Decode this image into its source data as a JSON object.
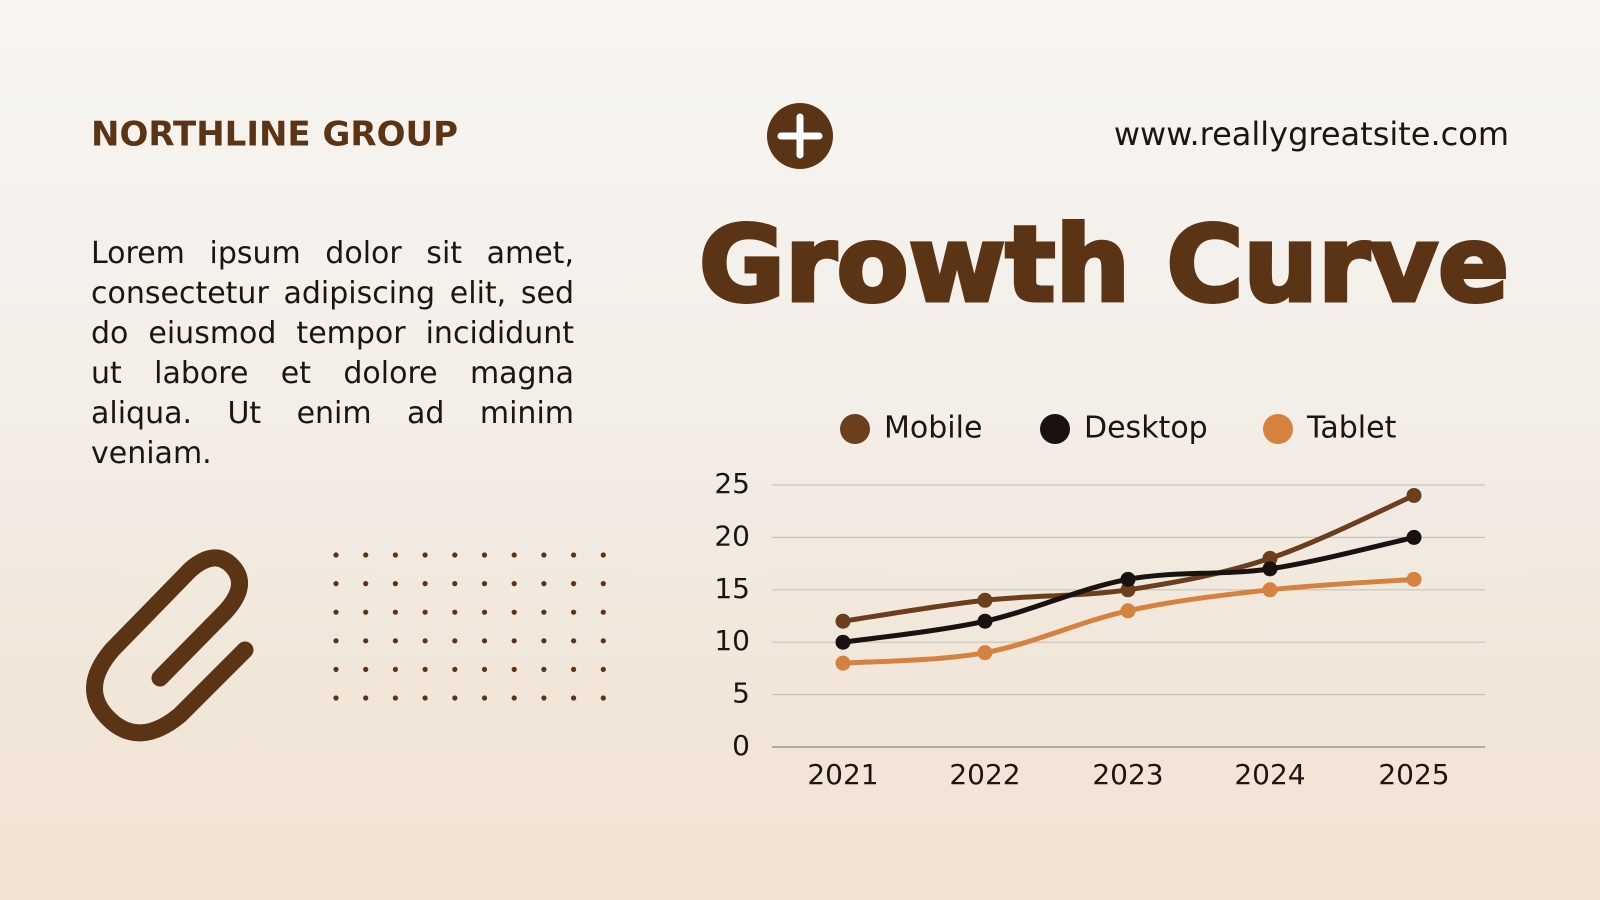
{
  "header": {
    "brand": "NORTHLINE GROUP",
    "url": "www.reallygreatsite.com"
  },
  "body": "Lorem ipsum dolor sit amet, consectetur adipiscing elit, sed do eiusmod tempor incididunt ut labore et dolore magna aliqua. Ut enim ad minim veniam.",
  "chart_data": {
    "type": "line",
    "title": "Growth Curve",
    "categories": [
      "2021",
      "2022",
      "2023",
      "2024",
      "2025"
    ],
    "series": [
      {
        "name": "Mobile",
        "color": "#6b3f1d",
        "values": [
          12,
          14,
          15,
          18,
          24
        ]
      },
      {
        "name": "Desktop",
        "color": "#1a1210",
        "values": [
          10,
          12,
          16,
          17,
          20
        ]
      },
      {
        "name": "Tablet",
        "color": "#d4823e",
        "values": [
          8,
          9,
          13,
          15,
          16
        ]
      }
    ],
    "ylim": [
      0,
      25
    ],
    "yticks": [
      0,
      5,
      10,
      15,
      20,
      25
    ],
    "grid": true,
    "legend": "top"
  }
}
